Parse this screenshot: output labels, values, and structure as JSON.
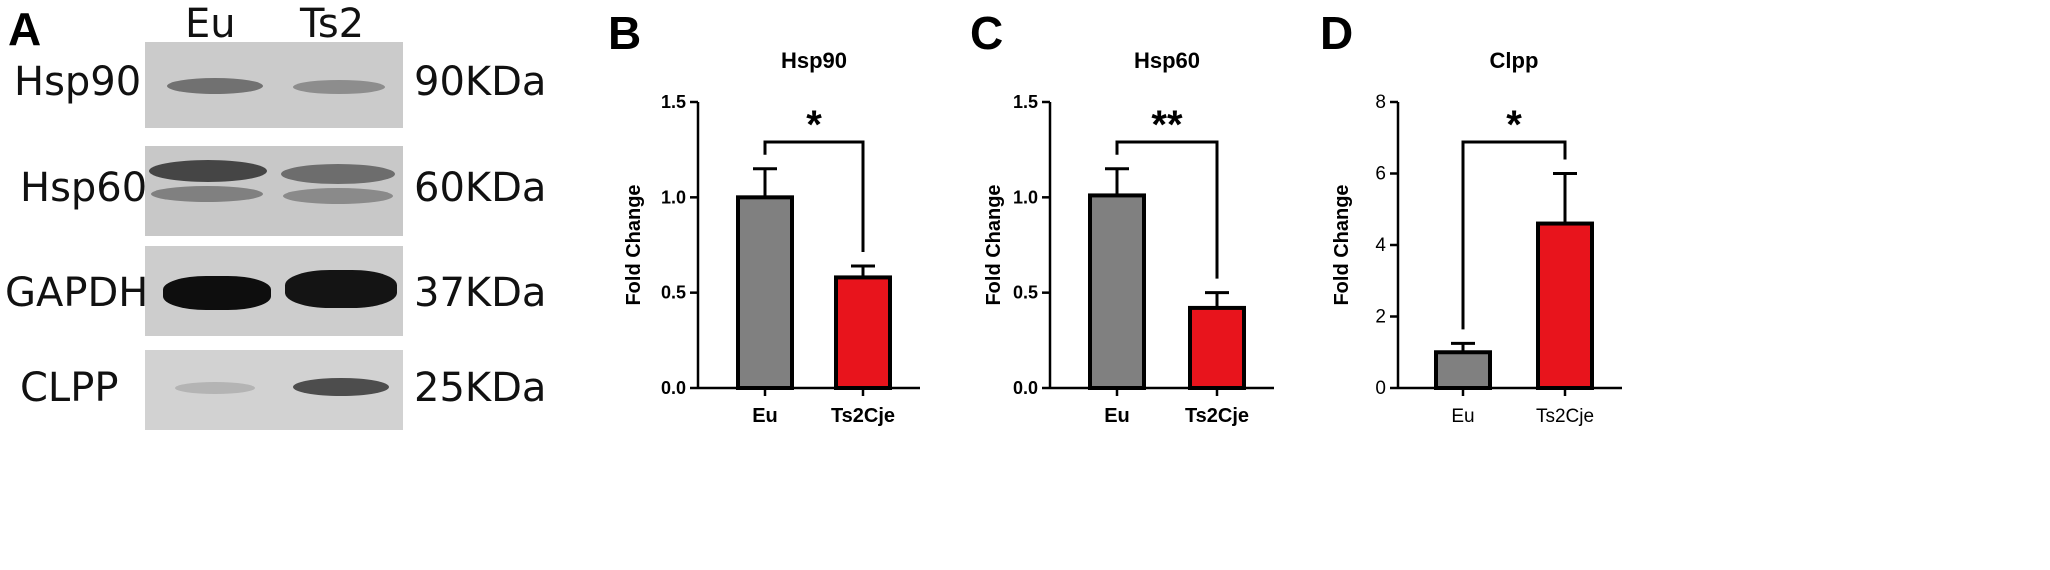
{
  "panels": {
    "A": "A",
    "B": "B",
    "C": "C",
    "D": "D"
  },
  "blot": {
    "lanes": [
      "Eu",
      "Ts2"
    ],
    "rows": [
      {
        "protein": "Hsp90",
        "size": "90KDa",
        "eu_intensity": 0.45,
        "ts_intensity": 0.35
      },
      {
        "protein": "Hsp60",
        "size": "60KDa",
        "eu_intensity": 0.75,
        "ts_intensity": 0.55
      },
      {
        "protein": "GAPDH",
        "size": "37KDa",
        "eu_intensity": 1.0,
        "ts_intensity": 1.0
      },
      {
        "protein": "CLPP",
        "size": "25KDa",
        "eu_intensity": 0.15,
        "ts_intensity": 0.7
      }
    ]
  },
  "colors": {
    "eu_bar": "#808080",
    "ts_bar": "#e8141c",
    "axis": "#000000"
  },
  "chart_data": [
    {
      "type": "bar",
      "title": "Hsp90",
      "ylabel": "Fold Change",
      "categories": [
        "Eu",
        "Ts2Cje"
      ],
      "values": [
        1.0,
        0.58
      ],
      "errors": [
        0.15,
        0.06
      ],
      "ylim": [
        0,
        1.5
      ],
      "yticks": [
        "0.0",
        "0.5",
        "1.0",
        "1.5"
      ],
      "significance": "*",
      "grid": false
    },
    {
      "type": "bar",
      "title": "Hsp60",
      "ylabel": "Fold Change",
      "categories": [
        "Eu",
        "Ts2Cje"
      ],
      "values": [
        1.01,
        0.42
      ],
      "errors": [
        0.14,
        0.08
      ],
      "ylim": [
        0,
        1.5
      ],
      "yticks": [
        "0.0",
        "0.5",
        "1.0",
        "1.5"
      ],
      "significance": "**",
      "grid": false
    },
    {
      "type": "bar",
      "title": "Clpp",
      "ylabel": "Fold Change",
      "categories": [
        "Eu",
        "Ts2Cje"
      ],
      "values": [
        1.0,
        4.6
      ],
      "errors": [
        0.25,
        1.4
      ],
      "ylim": [
        0,
        8
      ],
      "yticks": [
        "0",
        "2",
        "4",
        "6",
        "8"
      ],
      "significance": "*",
      "grid": false
    }
  ]
}
